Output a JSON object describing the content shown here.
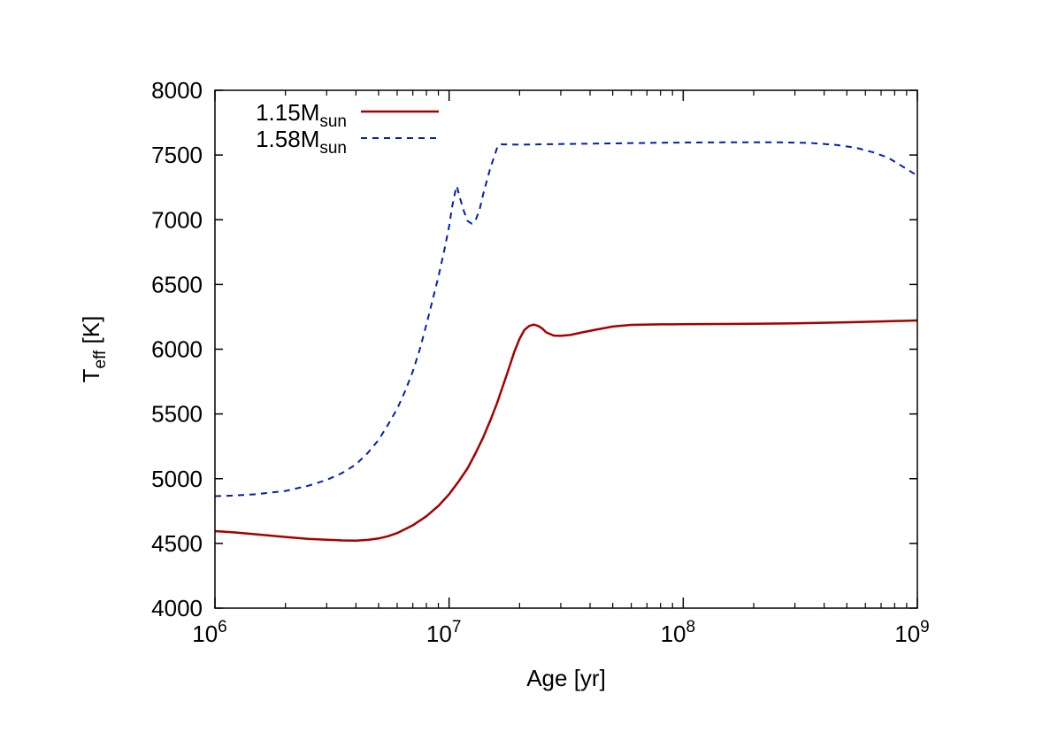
{
  "chart_data": {
    "type": "line",
    "xscale": "log",
    "xlim": [
      1000000,
      1000000000
    ],
    "ylim": [
      4000,
      8000
    ],
    "x_ticks": [
      {
        "value": 1000000,
        "base": "10",
        "exp": "6"
      },
      {
        "value": 10000000,
        "base": "10",
        "exp": "7"
      },
      {
        "value": 100000000,
        "base": "10",
        "exp": "8"
      },
      {
        "value": 1000000000,
        "base": "10",
        "exp": "9"
      }
    ],
    "y_ticks": [
      "4000",
      "4500",
      "5000",
      "5500",
      "6000",
      "6500",
      "7000",
      "7500",
      "8000"
    ],
    "xlabel": "Age [yr]",
    "ylabel": {
      "main": "T",
      "sub": "eff",
      "rest": " [K]"
    },
    "legend_position": "top-left",
    "grid": false,
    "series": [
      {
        "name": {
          "main": "1.15M",
          "sub": "sun"
        },
        "color": "#a50000",
        "style": "solid",
        "points": [
          [
            1000000,
            4595
          ],
          [
            1200000,
            4585
          ],
          [
            1500000,
            4570
          ],
          [
            2000000,
            4550
          ],
          [
            2500000,
            4535
          ],
          [
            3000000,
            4528
          ],
          [
            3500000,
            4523
          ],
          [
            4000000,
            4522
          ],
          [
            4500000,
            4527
          ],
          [
            5000000,
            4538
          ],
          [
            5500000,
            4556
          ],
          [
            6000000,
            4580
          ],
          [
            7000000,
            4640
          ],
          [
            8000000,
            4710
          ],
          [
            9000000,
            4790
          ],
          [
            10000000,
            4880
          ],
          [
            11000000,
            4980
          ],
          [
            12000000,
            5080
          ],
          [
            13000000,
            5200
          ],
          [
            14000000,
            5320
          ],
          [
            15000000,
            5450
          ],
          [
            16000000,
            5580
          ],
          [
            17000000,
            5720
          ],
          [
            18000000,
            5850
          ],
          [
            19000000,
            5980
          ],
          [
            20000000,
            6080
          ],
          [
            21000000,
            6150
          ],
          [
            22000000,
            6180
          ],
          [
            23000000,
            6190
          ],
          [
            24000000,
            6180
          ],
          [
            25000000,
            6160
          ],
          [
            26000000,
            6130
          ],
          [
            28000000,
            6105
          ],
          [
            30000000,
            6103
          ],
          [
            33000000,
            6110
          ],
          [
            37000000,
            6130
          ],
          [
            42000000,
            6150
          ],
          [
            50000000,
            6175
          ],
          [
            60000000,
            6188
          ],
          [
            80000000,
            6192
          ],
          [
            100000000,
            6193
          ],
          [
            150000000,
            6195
          ],
          [
            200000000,
            6197
          ],
          [
            300000000,
            6200
          ],
          [
            500000000,
            6208
          ],
          [
            700000000,
            6215
          ],
          [
            1000000000,
            6222
          ]
        ]
      },
      {
        "name": {
          "main": "1.58M",
          "sub": "sun"
        },
        "color": "#0020b0",
        "style": "dashed",
        "points": [
          [
            1000000,
            4865
          ],
          [
            1200000,
            4870
          ],
          [
            1500000,
            4880
          ],
          [
            2000000,
            4905
          ],
          [
            2500000,
            4945
          ],
          [
            3000000,
            4990
          ],
          [
            3500000,
            5045
          ],
          [
            4000000,
            5110
          ],
          [
            4500000,
            5200
          ],
          [
            5000000,
            5300
          ],
          [
            5500000,
            5420
          ],
          [
            6000000,
            5540
          ],
          [
            6500000,
            5680
          ],
          [
            7000000,
            5830
          ],
          [
            7500000,
            6000
          ],
          [
            8000000,
            6190
          ],
          [
            8500000,
            6380
          ],
          [
            9000000,
            6560
          ],
          [
            9500000,
            6750
          ],
          [
            10000000,
            6950
          ],
          [
            10300000,
            7100
          ],
          [
            10600000,
            7210
          ],
          [
            10800000,
            7260
          ],
          [
            11000000,
            7200
          ],
          [
            11500000,
            7080
          ],
          [
            12000000,
            6990
          ],
          [
            12500000,
            6970
          ],
          [
            13000000,
            7000
          ],
          [
            13500000,
            7080
          ],
          [
            14000000,
            7200
          ],
          [
            15000000,
            7400
          ],
          [
            16000000,
            7550
          ],
          [
            16500000,
            7585
          ],
          [
            17000000,
            7582
          ],
          [
            20000000,
            7580
          ],
          [
            30000000,
            7585
          ],
          [
            50000000,
            7590
          ],
          [
            80000000,
            7595
          ],
          [
            150000000,
            7598
          ],
          [
            250000000,
            7598
          ],
          [
            350000000,
            7593
          ],
          [
            450000000,
            7578
          ],
          [
            550000000,
            7555
          ],
          [
            650000000,
            7520
          ],
          [
            750000000,
            7480
          ],
          [
            850000000,
            7420
          ],
          [
            1000000000,
            7340
          ]
        ]
      }
    ]
  }
}
